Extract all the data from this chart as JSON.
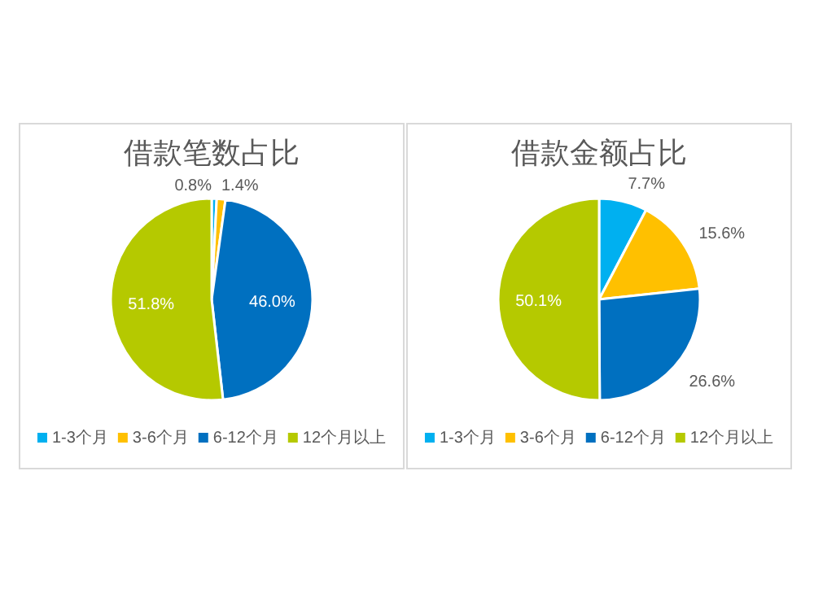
{
  "chart_data": [
    {
      "type": "pie",
      "title": "借款笔数占比",
      "categories": [
        "1-3个月",
        "3-6个月",
        "6-12个月",
        "12个月以上"
      ],
      "values": [
        0.8,
        1.4,
        46.0,
        51.8
      ],
      "value_labels": [
        "0.8%",
        "1.4%",
        "46.0%",
        "51.8%"
      ],
      "colors": [
        "#00b0f0",
        "#ffc000",
        "#0070c0",
        "#b5c900"
      ],
      "legend": "bottom"
    },
    {
      "type": "pie",
      "title": "借款金额占比",
      "categories": [
        "1-3个月",
        "3-6个月",
        "6-12个月",
        "12个月以上"
      ],
      "values": [
        7.7,
        15.6,
        26.6,
        50.1
      ],
      "value_labels": [
        "7.7%",
        "15.6%",
        "26.6%",
        "50.1%"
      ],
      "colors": [
        "#00b0f0",
        "#ffc000",
        "#0070c0",
        "#b5c900"
      ],
      "legend": "bottom"
    }
  ]
}
